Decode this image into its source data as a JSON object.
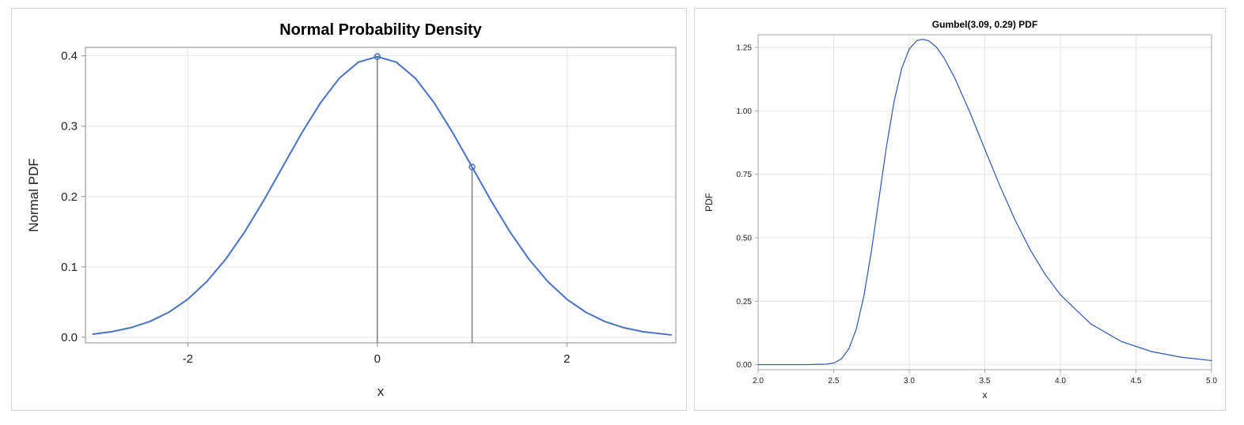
{
  "chart_data": [
    {
      "type": "line",
      "title": "Normal Probability Density",
      "xlabel": "x",
      "ylabel": "Normal PDF",
      "xlim": [
        -3.08,
        3.15
      ],
      "ylim": [
        -0.008,
        0.412
      ],
      "xticks": [
        -2,
        0,
        2
      ],
      "xtick_labels": [
        "-2",
        "0",
        "2"
      ],
      "yticks": [
        0.0,
        0.1,
        0.2,
        0.3,
        0.4
      ],
      "ytick_labels": [
        "0.0",
        "0.1",
        "0.2",
        "0.3",
        "0.4"
      ],
      "grid": true,
      "colors": {
        "line": "#4a72c4",
        "drop_line": "#7f7f7f",
        "grid": "#e6e6e6",
        "frame": "#8c8c8c"
      },
      "series": [
        {
          "x": [
            -3.0,
            -2.8,
            -2.6,
            -2.4,
            -2.2,
            -2.0,
            -1.8,
            -1.6,
            -1.4,
            -1.2,
            -1.0,
            -0.8,
            -0.6,
            -0.4,
            -0.2,
            0.0,
            0.2,
            0.4,
            0.6,
            0.8,
            1.0,
            1.2,
            1.4,
            1.6,
            1.8,
            2.0,
            2.2,
            2.4,
            2.6,
            2.8,
            3.1
          ],
          "y": [
            0.0044,
            0.0079,
            0.0136,
            0.0224,
            0.0355,
            0.054,
            0.079,
            0.1109,
            0.1497,
            0.1942,
            0.242,
            0.2897,
            0.3332,
            0.3683,
            0.391,
            0.3989,
            0.391,
            0.3683,
            0.3332,
            0.2897,
            0.242,
            0.1942,
            0.1497,
            0.1109,
            0.079,
            0.054,
            0.0355,
            0.0224,
            0.0136,
            0.0079,
            0.0033
          ]
        }
      ],
      "highlighted_points": [
        {
          "x": 0,
          "y": 0.3989
        },
        {
          "x": 1,
          "y": 0.242
        }
      ],
      "drop_lines": [
        {
          "x": 0,
          "y": 0.3989
        },
        {
          "x": 1,
          "y": 0.242
        }
      ]
    },
    {
      "type": "line",
      "title": "Gumbel(3.09, 0.29) PDF",
      "xlabel": "x",
      "ylabel": "PDF",
      "xlim": [
        2.0,
        5.0
      ],
      "ylim": [
        -0.02,
        1.3
      ],
      "xticks": [
        2.0,
        2.5,
        3.0,
        3.5,
        4.0,
        4.5,
        5.0
      ],
      "xtick_labels": [
        "2.0",
        "2.5",
        "3.0",
        "3.5",
        "4.0",
        "4.5",
        "5.0"
      ],
      "yticks": [
        0.0,
        0.25,
        0.5,
        0.75,
        1.0,
        1.25
      ],
      "ytick_labels": [
        "0.00",
        "0.25",
        "0.50",
        "0.75",
        "1.00",
        "1.25"
      ],
      "grid": true,
      "colors": {
        "line": "#2f57b5",
        "grid": "#e6e6e6",
        "frame": "#a6a6a6"
      },
      "series": [
        {
          "x": [
            2.0,
            2.2,
            2.3,
            2.4,
            2.45,
            2.5,
            2.55,
            2.6,
            2.65,
            2.7,
            2.75,
            2.8,
            2.85,
            2.9,
            2.95,
            3.0,
            3.05,
            3.09,
            3.13,
            3.18,
            3.23,
            3.3,
            3.4,
            3.5,
            3.6,
            3.7,
            3.8,
            3.9,
            4.0,
            4.2,
            4.4,
            4.6,
            4.8,
            5.0
          ],
          "y": [
            0.0,
            0.0,
            0.0,
            0.001,
            0.002,
            0.006,
            0.022,
            0.062,
            0.141,
            0.271,
            0.449,
            0.656,
            0.862,
            1.038,
            1.167,
            1.244,
            1.277,
            1.282,
            1.276,
            1.251,
            1.209,
            1.131,
            0.996,
            0.849,
            0.704,
            0.57,
            0.453,
            0.355,
            0.275,
            0.161,
            0.092,
            0.052,
            0.029,
            0.016
          ]
        }
      ]
    }
  ]
}
